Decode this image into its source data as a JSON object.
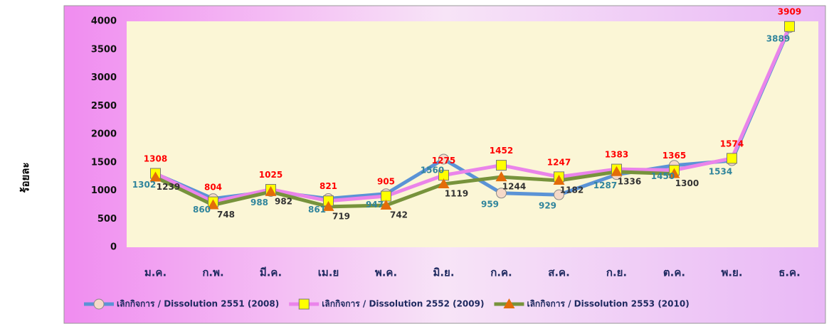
{
  "chart_data": {
    "type": "line",
    "y_label": "ร้อยละ",
    "categories": [
      "ม.ค.",
      "ก.พ.",
      "มี.ค.",
      "เม.ย",
      "พ.ค.",
      "มิ.ย.",
      "ก.ค.",
      "ส.ค.",
      "ก.ย.",
      "ต.ค.",
      "พ.ย.",
      "ธ.ค."
    ],
    "series": [
      {
        "name": "เลิกกิจการ / Dissolution 2551 (2008)",
        "color": "#5b93d6",
        "marker": "circle",
        "marker_color": "#f5d9c8",
        "label_color": "#31859c",
        "values": [
          1302,
          860,
          988,
          861,
          947,
          1560,
          959,
          929,
          1287,
          1450,
          1534,
          3889
        ]
      },
      {
        "name": "เลิกกิจการ / Dissolution 2552 (2009)",
        "color": "#ea84ea",
        "marker": "square",
        "marker_color": "#ffff00",
        "label_color": "#ff0000",
        "values": [
          1308,
          804,
          1025,
          821,
          905,
          1275,
          1452,
          1247,
          1383,
          1365,
          1574,
          3909
        ]
      },
      {
        "name": "เลิกกิจการ / Dissolution 2553 (2010)",
        "color": "#77933c",
        "marker": "triangle",
        "marker_color": "#e36c09",
        "label_color": "#333333",
        "values": [
          1239,
          748,
          982,
          719,
          742,
          1119,
          1244,
          1182,
          1336,
          1300,
          null,
          null
        ]
      }
    ],
    "ylim": [
      0,
      4000
    ],
    "yticks": [
      0,
      500,
      1000,
      1500,
      2000,
      2500,
      3000,
      3500,
      4000
    ],
    "grid": false,
    "legend": "bottom"
  }
}
